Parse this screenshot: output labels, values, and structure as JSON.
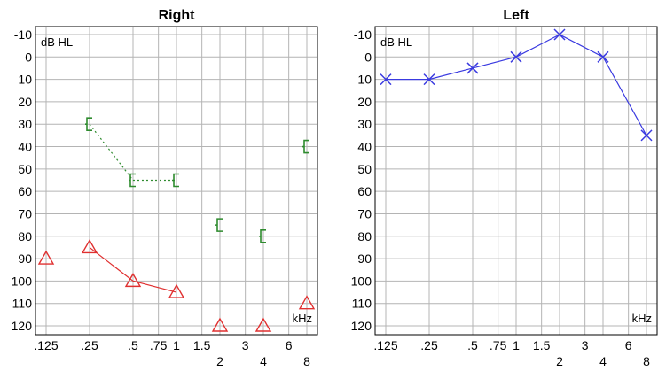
{
  "chart_data": [
    {
      "type": "line",
      "title": "Right",
      "ylabel": "dB HL",
      "xlabel": "kHz",
      "ylim": [
        125,
        -12
      ],
      "y_ticks": [
        "-10",
        "0",
        "10",
        "20",
        "30",
        "40",
        "50",
        "60",
        "70",
        "80",
        "90",
        "100",
        "110",
        "120"
      ],
      "x_ticks_top": [
        ".125",
        ".25",
        ".5",
        ".75",
        "1",
        "1.5",
        "3",
        "6"
      ],
      "x_ticks_bottom": [
        "2",
        "4",
        "8"
      ],
      "grid": true,
      "series": [
        {
          "marker": "triangle",
          "color": "#e03030",
          "points": [
            {
              "x": ".125",
              "y": 90
            },
            {
              "x": ".25",
              "y": 85
            },
            {
              "x": ".5",
              "y": 100
            },
            {
              "x": "1",
              "y": 105
            },
            {
              "x": "2",
              "y": 120
            },
            {
              "x": "4",
              "y": 120
            },
            {
              "x": "8",
              "y": 110
            }
          ],
          "connected_ranges": [
            [
              1,
              3
            ]
          ]
        },
        {
          "marker": "bracket",
          "color": "#2e8b2e",
          "line_style": "dotted",
          "points": [
            {
              "x": ".25",
              "y": 30
            },
            {
              "x": ".5",
              "y": 55
            },
            {
              "x": "1",
              "y": 55
            },
            {
              "x": "2",
              "y": 75
            },
            {
              "x": "4",
              "y": 80
            },
            {
              "x": "8",
              "y": 40
            }
          ],
          "connected_ranges": [
            [
              0,
              2
            ]
          ]
        }
      ]
    },
    {
      "type": "line",
      "title": "Left",
      "ylabel": "dB HL",
      "xlabel": "kHz",
      "ylim": [
        125,
        -12
      ],
      "y_ticks": [
        "-10",
        "0",
        "10",
        "20",
        "30",
        "40",
        "50",
        "60",
        "70",
        "80",
        "90",
        "100",
        "110",
        "120"
      ],
      "x_ticks_top": [
        ".125",
        ".25",
        ".5",
        ".75",
        "1",
        "1.5",
        "3",
        "6"
      ],
      "x_ticks_bottom": [
        "2",
        "4",
        "8"
      ],
      "grid": true,
      "series": [
        {
          "marker": "cross",
          "color": "#3a3ae0",
          "points": [
            {
              "x": ".125",
              "y": 10
            },
            {
              "x": ".25",
              "y": 10
            },
            {
              "x": ".5",
              "y": 5
            },
            {
              "x": "1",
              "y": 0
            },
            {
              "x": "2",
              "y": -10
            },
            {
              "x": "4",
              "y": 0
            },
            {
              "x": "8",
              "y": 35
            }
          ],
          "connected_ranges": [
            [
              0,
              6
            ]
          ]
        }
      ]
    }
  ]
}
